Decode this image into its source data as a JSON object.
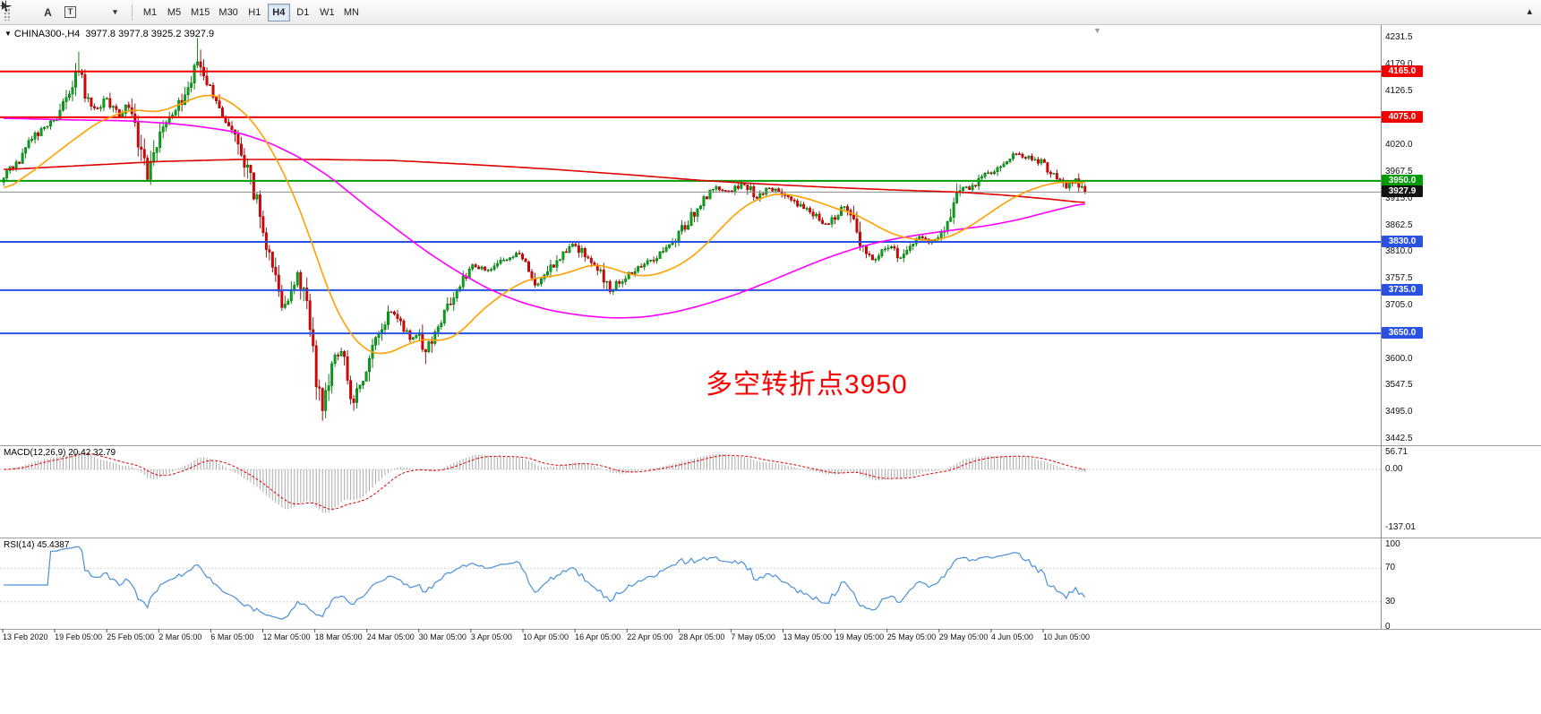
{
  "icons": {
    "expander": "▼",
    "chevron_down": "▾",
    "dock_arrow": "▴",
    "shift_marker": "▼",
    "text_tool": "A"
  },
  "toolbar": {
    "text_tool": "A",
    "textbox_tool": "T",
    "timeframes": [
      {
        "label": "M1",
        "active": false
      },
      {
        "label": "M5",
        "active": false
      },
      {
        "label": "M15",
        "active": false
      },
      {
        "label": "M30",
        "active": false
      },
      {
        "label": "H1",
        "active": false
      },
      {
        "label": "H4",
        "active": true
      },
      {
        "label": "D1",
        "active": false
      },
      {
        "label": "W1",
        "active": false
      },
      {
        "label": "MN",
        "active": false
      }
    ]
  },
  "chart_data": {
    "type": "candlestick",
    "symbol_label": "CHINA300-,H4",
    "header_ohlc": "3977.8 3977.8 3925.2 3927.9",
    "annotation": {
      "text": "多空转折点3950",
      "color": "#ff0000"
    },
    "current_price": {
      "value": 3927.9,
      "label": "3927.9"
    },
    "y_axis": {
      "ticks": [
        "4231.5",
        "4179.0",
        "4126.5",
        "4020.0",
        "3967.5",
        "3915.0",
        "3862.5",
        "3810.0",
        "3757.5",
        "3705.0",
        "3600.0",
        "3547.5",
        "3495.0",
        "3442.5"
      ]
    },
    "x_axis": {
      "labels": [
        "13 Feb 2020",
        "19 Feb 05:00",
        "25 Feb 05:00",
        "2 Mar 05:00",
        "6 Mar 05:00",
        "12 Mar 05:00",
        "18 Mar 05:00",
        "24 Mar 05:00",
        "30 Mar 05:00",
        "3 Apr 05:00",
        "10 Apr 05:00",
        "16 Apr 05:00",
        "22 Apr 05:00",
        "28 Apr 05:00",
        "7 May 05:00",
        "13 May 05:00",
        "19 May 05:00",
        "25 May 05:00",
        "29 May 05:00",
        "4 Jun 05:00",
        "10 Jun 05:00"
      ]
    },
    "hlines": [
      {
        "price": 4165.0,
        "label": "4165.0",
        "color": "#f20000"
      },
      {
        "price": 4075.0,
        "label": "4075.0",
        "color": "#f20000"
      },
      {
        "price": 3950.0,
        "label": "3950.0",
        "color": "#009b00"
      },
      {
        "price": 3830.0,
        "label": "3830.0",
        "color": "#2952e3"
      },
      {
        "price": 3735.0,
        "label": "3735.0",
        "color": "#2952e3"
      },
      {
        "price": 3650.0,
        "label": "3650.0",
        "color": "#2952e3"
      }
    ],
    "candles": {
      "count": 347,
      "up_color": "#00a81e",
      "up_border": "#036e03",
      "down_color": "#e50000",
      "down_border": "#8e0000",
      "price_path": [
        [
          0,
          3955
        ],
        [
          4,
          3985
        ],
        [
          8,
          4025
        ],
        [
          12,
          4050
        ],
        [
          17,
          4080
        ],
        [
          22,
          4140
        ],
        [
          24,
          4168
        ],
        [
          26,
          4120
        ],
        [
          30,
          4090
        ],
        [
          33,
          4110
        ],
        [
          37,
          4078
        ],
        [
          40,
          4100
        ],
        [
          44,
          3995
        ],
        [
          46,
          3958
        ],
        [
          48,
          4010
        ],
        [
          52,
          4068
        ],
        [
          56,
          4100
        ],
        [
          60,
          4150
        ],
        [
          62,
          4188
        ],
        [
          64,
          4160
        ],
        [
          66,
          4132
        ],
        [
          70,
          4085
        ],
        [
          74,
          4045
        ],
        [
          77,
          3992
        ],
        [
          80,
          3932
        ],
        [
          83,
          3848
        ],
        [
          86,
          3792
        ],
        [
          89,
          3692
        ],
        [
          92,
          3732
        ],
        [
          94,
          3766
        ],
        [
          97,
          3700
        ],
        [
          100,
          3562
        ],
        [
          102,
          3498
        ],
        [
          105,
          3600
        ],
        [
          108,
          3622
        ],
        [
          110,
          3562
        ],
        [
          112,
          3512
        ],
        [
          115,
          3560
        ],
        [
          118,
          3616
        ],
        [
          121,
          3665
        ],
        [
          124,
          3692
        ],
        [
          127,
          3666
        ],
        [
          130,
          3642
        ],
        [
          133,
          3646
        ],
        [
          135,
          3616
        ],
        [
          138,
          3660
        ],
        [
          142,
          3700
        ],
        [
          146,
          3746
        ],
        [
          150,
          3780
        ],
        [
          155,
          3776
        ],
        [
          160,
          3796
        ],
        [
          164,
          3806
        ],
        [
          168,
          3776
        ],
        [
          171,
          3746
        ],
        [
          175,
          3780
        ],
        [
          179,
          3810
        ],
        [
          183,
          3824
        ],
        [
          187,
          3796
        ],
        [
          191,
          3770
        ],
        [
          194,
          3736
        ],
        [
          198,
          3756
        ],
        [
          202,
          3776
        ],
        [
          206,
          3790
        ],
        [
          210,
          3806
        ],
        [
          213,
          3820
        ],
        [
          216,
          3846
        ],
        [
          220,
          3880
        ],
        [
          224,
          3916
        ],
        [
          228,
          3936
        ],
        [
          233,
          3930
        ],
        [
          237,
          3946
        ],
        [
          241,
          3916
        ],
        [
          245,
          3936
        ],
        [
          250,
          3920
        ],
        [
          255,
          3900
        ],
        [
          259,
          3886
        ],
        [
          263,
          3866
        ],
        [
          266,
          3880
        ],
        [
          269,
          3900
        ],
        [
          272,
          3860
        ],
        [
          275,
          3812
        ],
        [
          278,
          3796
        ],
        [
          281,
          3810
        ],
        [
          284,
          3822
        ],
        [
          287,
          3800
        ],
        [
          290,
          3820
        ],
        [
          293,
          3840
        ],
        [
          296,
          3830
        ],
        [
          300,
          3846
        ],
        [
          303,
          3872
        ],
        [
          306,
          3940
        ],
        [
          309,
          3930
        ],
        [
          312,
          3956
        ],
        [
          316,
          3966
        ],
        [
          320,
          3986
        ],
        [
          324,
          4002
        ],
        [
          328,
          3996
        ],
        [
          332,
          3986
        ],
        [
          336,
          3962
        ],
        [
          340,
          3936
        ],
        [
          343,
          3952
        ],
        [
          346,
          3927.9
        ]
      ],
      "spikes": [
        {
          "b": 24,
          "high": 4204
        },
        {
          "b": 62,
          "high": 4231
        },
        {
          "b": 63,
          "high": 4208
        },
        {
          "b": 102,
          "low": 3478
        },
        {
          "b": 103,
          "low": 3492
        },
        {
          "b": 112,
          "low": 3498
        },
        {
          "b": 135,
          "low": 3590
        }
      ]
    },
    "overlays": [
      {
        "name": "ma-slow-line",
        "color": "#dd0000",
        "path": [
          [
            0,
            3972
          ],
          [
            25,
            3980
          ],
          [
            50,
            3988
          ],
          [
            75,
            3992
          ],
          [
            100,
            3992
          ],
          [
            125,
            3990
          ],
          [
            150,
            3982
          ],
          [
            175,
            3973
          ],
          [
            200,
            3962
          ],
          [
            225,
            3950
          ],
          [
            245,
            3943
          ],
          [
            265,
            3937
          ],
          [
            285,
            3932
          ],
          [
            305,
            3928
          ],
          [
            320,
            3922
          ],
          [
            335,
            3914
          ],
          [
            347,
            3906
          ]
        ]
      },
      {
        "name": "ma-medium-line",
        "color": "#ff00ff",
        "path": [
          [
            0,
            4073
          ],
          [
            20,
            4070
          ],
          [
            40,
            4068
          ],
          [
            55,
            4062
          ],
          [
            65,
            4055
          ],
          [
            75,
            4045
          ],
          [
            85,
            4025
          ],
          [
            95,
            3995
          ],
          [
            105,
            3955
          ],
          [
            115,
            3905
          ],
          [
            125,
            3858
          ],
          [
            135,
            3812
          ],
          [
            145,
            3772
          ],
          [
            155,
            3738
          ],
          [
            165,
            3712
          ],
          [
            175,
            3695
          ],
          [
            185,
            3685
          ],
          [
            195,
            3680
          ],
          [
            205,
            3682
          ],
          [
            215,
            3692
          ],
          [
            225,
            3708
          ],
          [
            235,
            3728
          ],
          [
            245,
            3752
          ],
          [
            255,
            3778
          ],
          [
            265,
            3802
          ],
          [
            275,
            3822
          ],
          [
            285,
            3836
          ],
          [
            295,
            3846
          ],
          [
            305,
            3854
          ],
          [
            315,
            3862
          ],
          [
            325,
            3874
          ],
          [
            335,
            3890
          ],
          [
            347,
            3908
          ]
        ]
      },
      {
        "name": "ma-fast-line",
        "color": "#ffa000",
        "path": [
          [
            0,
            3930
          ],
          [
            10,
            3972
          ],
          [
            20,
            4020
          ],
          [
            30,
            4065
          ],
          [
            40,
            4090
          ],
          [
            50,
            4085
          ],
          [
            58,
            4105
          ],
          [
            64,
            4120
          ],
          [
            70,
            4115
          ],
          [
            78,
            4080
          ],
          [
            85,
            4020
          ],
          [
            92,
            3935
          ],
          [
            98,
            3840
          ],
          [
            104,
            3730
          ],
          [
            110,
            3655
          ],
          [
            116,
            3615
          ],
          [
            122,
            3608
          ],
          [
            128,
            3625
          ],
          [
            134,
            3640
          ],
          [
            140,
            3634
          ],
          [
            146,
            3650
          ],
          [
            152,
            3690
          ],
          [
            158,
            3720
          ],
          [
            164,
            3745
          ],
          [
            170,
            3760
          ],
          [
            176,
            3762
          ],
          [
            182,
            3772
          ],
          [
            188,
            3786
          ],
          [
            194,
            3780
          ],
          [
            200,
            3766
          ],
          [
            206,
            3762
          ],
          [
            212,
            3772
          ],
          [
            218,
            3790
          ],
          [
            224,
            3820
          ],
          [
            230,
            3860
          ],
          [
            236,
            3896
          ],
          [
            242,
            3916
          ],
          [
            248,
            3926
          ],
          [
            254,
            3920
          ],
          [
            260,
            3910
          ],
          [
            266,
            3896
          ],
          [
            272,
            3886
          ],
          [
            278,
            3866
          ],
          [
            284,
            3846
          ],
          [
            290,
            3836
          ],
          [
            296,
            3832
          ],
          [
            302,
            3838
          ],
          [
            308,
            3856
          ],
          [
            314,
            3880
          ],
          [
            320,
            3906
          ],
          [
            326,
            3926
          ],
          [
            332,
            3940
          ],
          [
            338,
            3948
          ],
          [
            347,
            3946
          ]
        ]
      }
    ],
    "macd": {
      "title": "MACD(12,26,9)",
      "values": "20.42 32.79",
      "ticks": [
        "56.71",
        "0.00",
        "-137.01"
      ],
      "hist_color": "#a9a9a9",
      "signal_color": "#e00000",
      "params": [
        12,
        26,
        9
      ]
    },
    "rsi": {
      "title": "RSI(14)",
      "value": "45.4387",
      "ticks": [
        "100",
        "70",
        "30",
        "0"
      ],
      "levels": [
        70,
        30
      ],
      "line_color": "#4a90d9"
    }
  }
}
